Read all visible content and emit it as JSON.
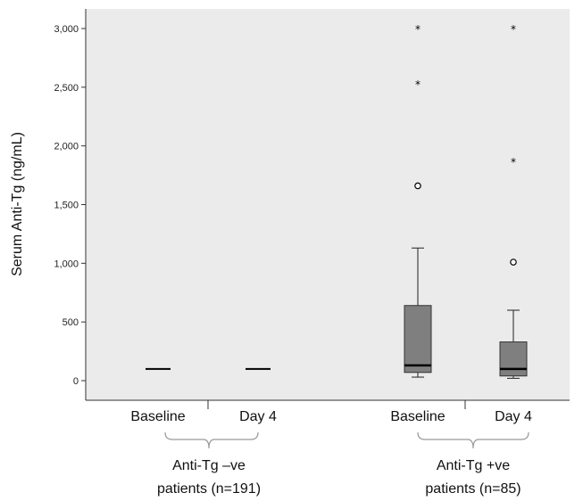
{
  "chart_data": {
    "type": "boxplot",
    "ylabel": "Serum Anti-Tg (ng/mL)",
    "ylim": [
      -150,
      3100
    ],
    "yticks": [
      0,
      500,
      1000,
      1500,
      2000,
      2500,
      3000
    ],
    "ytick_labels": [
      "0",
      "500",
      "1,000",
      "1,500",
      "2,000",
      "2,500",
      "3,000"
    ],
    "categories": [
      "Baseline",
      "Day 4",
      "Baseline",
      "Day 4"
    ],
    "groups": [
      {
        "label_line1": "Anti-Tg –ve",
        "label_line2": "patients (n=191)",
        "categories": [
          0,
          1
        ]
      },
      {
        "label_line1": "Anti-Tg +ve",
        "label_line2": "patients (n=85)",
        "categories": [
          2,
          3
        ]
      }
    ],
    "boxes": [
      {
        "category": "Baseline",
        "group": "Anti-Tg –ve",
        "min": 100,
        "q1": 100,
        "median": 100,
        "q3": 100,
        "max": 100,
        "outliers": [],
        "extremes": []
      },
      {
        "category": "Day 4",
        "group": "Anti-Tg –ve",
        "min": 100,
        "q1": 100,
        "median": 100,
        "q3": 100,
        "max": 100,
        "outliers": [],
        "extremes": []
      },
      {
        "category": "Baseline",
        "group": "Anti-Tg +ve",
        "min": 30,
        "q1": 70,
        "median": 130,
        "q3": 640,
        "max": 1130,
        "outliers": [
          1660
        ],
        "extremes": [
          2530,
          3000
        ]
      },
      {
        "category": "Day 4",
        "group": "Anti-Tg +ve",
        "min": 20,
        "q1": 40,
        "median": 100,
        "q3": 330,
        "max": 600,
        "outliers": [
          1010
        ],
        "extremes": [
          1870,
          3000
        ]
      }
    ],
    "box_color": "#7f7f7f",
    "plot_background": "#ebebeb"
  }
}
